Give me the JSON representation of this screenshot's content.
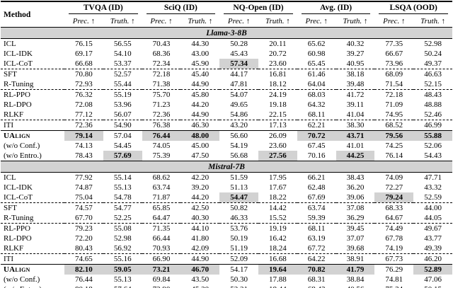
{
  "colors": {
    "highlight_bg": "#d2d2d2",
    "section_bg": "#d2d2d2",
    "rule_color": "#000000"
  },
  "header": {
    "method_label": "Method",
    "groups": [
      "TVQA (ID)",
      "SciQ (ID)",
      "NQ-Open (ID)",
      "Avg. (ID)",
      "LSQA (OOD)"
    ],
    "metric_labels": [
      "Prec. ↑",
      "Truth. ↑"
    ]
  },
  "sections": [
    {
      "title": "Llama-3-8B",
      "rows": [
        {
          "method": "ICL",
          "values": [
            "76.15",
            "56.55",
            "70.43",
            "44.30",
            "50.28",
            "20.11",
            "65.62",
            "40.32",
            "77.35",
            "52.98"
          ],
          "highlighted": [],
          "divider_after": null
        },
        {
          "method": "ICL-IDK",
          "values": [
            "69.17",
            "54.10",
            "68.36",
            "43.00",
            "45.43",
            "20.72",
            "60.98",
            "39.27",
            "66.67",
            "50.24"
          ],
          "highlighted": [],
          "divider_after": null
        },
        {
          "method": "ICL-CoT",
          "values": [
            "66.68",
            "53.37",
            "72.34",
            "45.90",
            "57.34",
            "23.60",
            "65.45",
            "40.95",
            "73.96",
            "49.37"
          ],
          "highlighted": [
            4
          ],
          "divider_after": "dashed"
        },
        {
          "method": "SFT",
          "values": [
            "70.80",
            "52.57",
            "72.18",
            "45.40",
            "44.17",
            "16.81",
            "61.46",
            "38.18",
            "68.09",
            "46.63"
          ],
          "highlighted": [],
          "divider_after": null
        },
        {
          "method": "R-Tuning",
          "values": [
            "72.93",
            "55.44",
            "71.38",
            "44.90",
            "47.81",
            "18.12",
            "64.04",
            "39.48",
            "71.54",
            "52.15"
          ],
          "highlighted": [],
          "divider_after": "dashed"
        },
        {
          "method": "RL-PPO",
          "values": [
            "76.32",
            "55.19",
            "75.70",
            "45.80",
            "54.07",
            "24.19",
            "68.03",
            "41.72",
            "72.18",
            "48.43"
          ],
          "highlighted": [],
          "divider_after": null
        },
        {
          "method": "RL-DPO",
          "values": [
            "72.08",
            "53.96",
            "71.23",
            "44.20",
            "49.65",
            "19.18",
            "64.32",
            "39.11",
            "71.09",
            "48.88"
          ],
          "highlighted": [],
          "divider_after": null
        },
        {
          "method": "RLKF",
          "values": [
            "77.12",
            "56.07",
            "72.36",
            "44.90",
            "54.86",
            "22.15",
            "68.11",
            "41.04",
            "74.95",
            "52.46"
          ],
          "highlighted": [],
          "divider_after": "dashed"
        },
        {
          "method": "ITI",
          "values": [
            "72.36",
            "54.90",
            "76.38",
            "46.30",
            "43.20",
            "17.13",
            "62.21",
            "38.30",
            "68.52",
            "46.99"
          ],
          "highlighted": [],
          "divider_after": "solid"
        },
        {
          "method": "UAlign",
          "values": [
            "79.14",
            "57.04",
            "76.44",
            "48.00",
            "56.60",
            "26.09",
            "70.72",
            "43.71",
            "79.56",
            "55.88"
          ],
          "highlighted": [
            0,
            2,
            3,
            6,
            7,
            8,
            9
          ],
          "divider_after": null,
          "method_style": "ualign"
        },
        {
          "method": "(w/o Conf.)",
          "values": [
            "74.13",
            "54.45",
            "74.05",
            "45.00",
            "54.19",
            "23.60",
            "67.45",
            "41.01",
            "74.25",
            "52.06"
          ],
          "highlighted": [],
          "divider_after": null
        },
        {
          "method": "(w/o Entro.)",
          "values": [
            "78.43",
            "57.69",
            "75.39",
            "47.50",
            "56.68",
            "27.56",
            "70.16",
            "44.25",
            "76.14",
            "54.43"
          ],
          "highlighted": [
            1,
            5,
            7
          ],
          "divider_after": null
        }
      ]
    },
    {
      "title": "Mistral-7B",
      "rows": [
        {
          "method": "ICL",
          "values": [
            "77.92",
            "55.14",
            "68.62",
            "42.20",
            "51.59",
            "17.95",
            "66.21",
            "38.43",
            "74.09",
            "47.71"
          ],
          "highlighted": [],
          "divider_after": null
        },
        {
          "method": "ICL-IDK",
          "values": [
            "74.87",
            "55.13",
            "63.74",
            "39.20",
            "51.13",
            "17.67",
            "62.48",
            "36.20",
            "72.27",
            "43.32"
          ],
          "highlighted": [],
          "divider_after": null
        },
        {
          "method": "ICL-CoT",
          "values": [
            "75.04",
            "54.78",
            "71.87",
            "44.20",
            "54.47",
            "18.22",
            "67.69",
            "39.06",
            "79.24",
            "52.59"
          ],
          "highlighted": [
            4,
            8
          ],
          "divider_after": "dashed"
        },
        {
          "method": "SFT",
          "values": [
            "74.57",
            "54.77",
            "65.85",
            "42.50",
            "50.82",
            "14.42",
            "63.74",
            "37.08",
            "68.33",
            "44.00"
          ],
          "highlighted": [],
          "divider_after": null
        },
        {
          "method": "R-Tuning",
          "values": [
            "67.70",
            "52.25",
            "64.47",
            "40.30",
            "46.33",
            "15.52",
            "59.39",
            "36.29",
            "64.67",
            "44.05"
          ],
          "highlighted": [],
          "divider_after": "dashed"
        },
        {
          "method": "RL-PPO",
          "values": [
            "79.23",
            "55.08",
            "71.35",
            "44.10",
            "53.76",
            "19.19",
            "68.11",
            "39.45",
            "74.49",
            "49.67"
          ],
          "highlighted": [],
          "divider_after": null
        },
        {
          "method": "RL-DPO",
          "values": [
            "72.20",
            "52.98",
            "66.44",
            "41.80",
            "50.19",
            "16.42",
            "63.19",
            "37.07",
            "67.78",
            "43.77"
          ],
          "highlighted": [],
          "divider_after": null
        },
        {
          "method": "RLKF",
          "values": [
            "80.43",
            "56.92",
            "70.93",
            "42.09",
            "51.19",
            "18.24",
            "67.72",
            "39.68",
            "74.19",
            "49.39"
          ],
          "highlighted": [],
          "divider_after": "dashed"
        },
        {
          "method": "ITI",
          "values": [
            "74.65",
            "55.16",
            "66.90",
            "44.90",
            "52.09",
            "16.68",
            "64.22",
            "38.91",
            "67.73",
            "46.20"
          ],
          "highlighted": [],
          "divider_after": "solid"
        },
        {
          "method": "UAlign",
          "values": [
            "82.10",
            "59.05",
            "73.21",
            "46.70",
            "54.17",
            "19.64",
            "70.82",
            "41.79",
            "76.29",
            "52.89"
          ],
          "highlighted": [
            0,
            1,
            2,
            3,
            5,
            6,
            7,
            9
          ],
          "divider_after": null,
          "method_style": "ualign"
        },
        {
          "method": "(w/o Conf.)",
          "values": [
            "76.44",
            "55.13",
            "69.84",
            "43.50",
            "50.30",
            "17.88",
            "68.31",
            "38.84",
            "74.81",
            "47.06"
          ],
          "highlighted": [],
          "divider_after": null
        },
        {
          "method": "(w/o Entro.)",
          "values": [
            "80.18",
            "57.64",
            "72.90",
            "45.20",
            "52.21",
            "18.44",
            "68.43",
            "40.56",
            "75.34",
            "50.15"
          ],
          "highlighted": [],
          "divider_after": null
        }
      ]
    }
  ]
}
